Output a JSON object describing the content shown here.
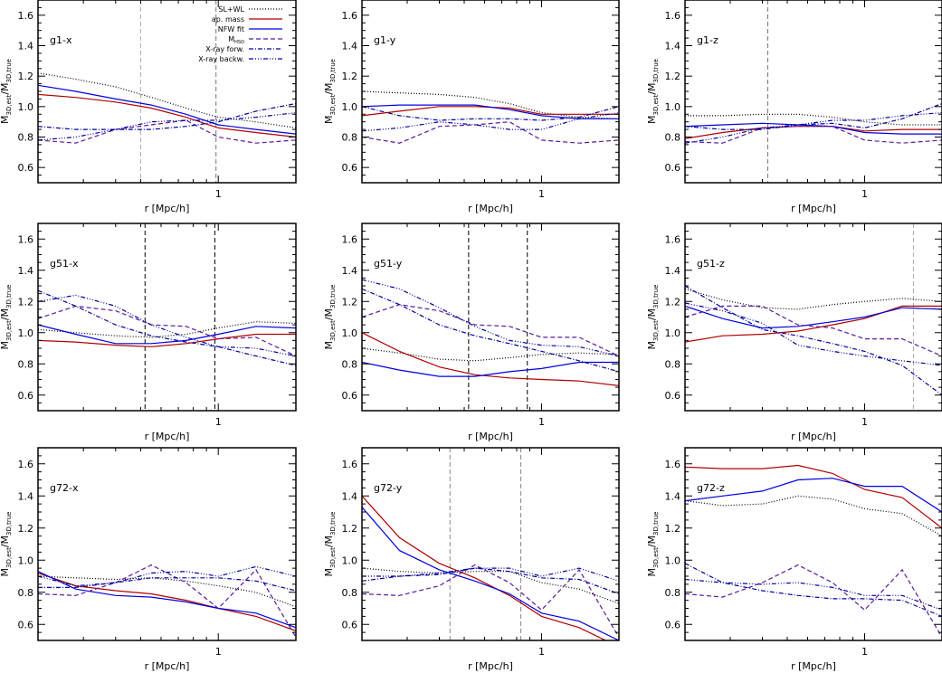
{
  "chart_data": {
    "type": "line",
    "layout": "3x3 grid",
    "xscale": "log",
    "xlim": [
      0.2,
      2.0
    ],
    "ylim": [
      0.5,
      1.7
    ],
    "xlabel": "r [Mpc/h]",
    "ylabel": "M3D,est/M3D,true",
    "ylabel_main": "M",
    "ylabel_sub1": "3D,est",
    "ylabel_mid": "/M",
    "ylabel_sub2": "3D,true",
    "xticks": [
      {
        "value": 1,
        "label": "1"
      }
    ],
    "xminor": [
      0.3,
      0.4,
      0.5,
      0.6,
      0.7,
      0.8,
      0.9,
      2.0
    ],
    "yticks": [
      {
        "value": 0.6,
        "label": "0.6"
      },
      {
        "value": 0.8,
        "label": "0.8"
      },
      {
        "value": 1.0,
        "label": "1.0"
      },
      {
        "value": 1.2,
        "label": "1.2"
      },
      {
        "value": 1.4,
        "label": "1.4"
      },
      {
        "value": 1.6,
        "label": "1.6"
      }
    ],
    "legend": {
      "position": "top-right of first panel",
      "entries": [
        {
          "key": "slwl",
          "label": "SL+WL"
        },
        {
          "key": "apmass",
          "label": "ap. mass"
        },
        {
          "key": "nfw",
          "label": "NFW fit"
        },
        {
          "key": "mhse",
          "label": "MHSE",
          "label_main": "M",
          "label_sub": "HSO"
        },
        {
          "key": "xfw",
          "label": "X-ray forw."
        },
        {
          "key": "xbw",
          "label": "X-ray backw."
        }
      ]
    },
    "series_styles": {
      "slwl": {
        "color": "#000000",
        "dash": "1,2"
      },
      "apmass": {
        "color": "#b00000",
        "dash": ""
      },
      "nfw": {
        "color": "#0000e0",
        "dash": ""
      },
      "mhse": {
        "color": "#5a1aa0",
        "dash": "5,3"
      },
      "xfw": {
        "color": "#00009a",
        "dash": "5,2,1,2"
      },
      "xbw": {
        "color": "#00009a",
        "dash": "5,2,1,2,1,2,1,2"
      }
    },
    "x": [
      0.2,
      0.28,
      0.4,
      0.55,
      0.75,
      1.0,
      1.4,
      2.0
    ],
    "panels": [
      {
        "label": "g1-x",
        "vlines": [
          {
            "x": 0.5,
            "color": "#aaaaaa"
          },
          {
            "x": 0.98,
            "color": "#777777"
          }
        ],
        "series": {
          "slwl": [
            1.22,
            1.18,
            1.13,
            1.06,
            0.99,
            0.93,
            0.9,
            0.86
          ],
          "apmass": [
            1.08,
            1.06,
            1.03,
            0.99,
            0.93,
            0.86,
            0.83,
            0.8
          ],
          "nfw": [
            1.14,
            1.1,
            1.05,
            1.01,
            0.95,
            0.88,
            0.85,
            0.82
          ],
          "mhse": [
            0.78,
            0.76,
            0.85,
            0.88,
            0.91,
            0.8,
            0.76,
            0.78
          ],
          "xfw": [
            0.87,
            0.85,
            0.85,
            0.85,
            0.87,
            0.9,
            0.97,
            1.02
          ],
          "xbw": [
            0.78,
            0.8,
            0.85,
            0.9,
            0.91,
            0.91,
            0.93,
            0.96
          ]
        }
      },
      {
        "label": "g1-y",
        "vlines": [],
        "series": {
          "slwl": [
            1.1,
            1.09,
            1.08,
            1.06,
            1.02,
            0.96,
            0.93,
            0.92
          ],
          "apmass": [
            0.94,
            0.97,
            1.0,
            1.0,
            0.99,
            0.95,
            0.95,
            0.95
          ],
          "nfw": [
            1.0,
            1.01,
            1.01,
            1.01,
            0.98,
            0.94,
            0.92,
            0.92
          ],
          "mhse": [
            0.8,
            0.76,
            0.87,
            0.88,
            0.9,
            0.78,
            0.76,
            0.78
          ],
          "xfw": [
            1.0,
            0.94,
            0.91,
            0.92,
            0.92,
            0.91,
            0.93,
            1.0
          ],
          "xbw": [
            0.84,
            0.86,
            0.9,
            0.88,
            0.85,
            0.85,
            0.92,
            0.96
          ]
        }
      },
      {
        "label": "g1-z",
        "vlines": [
          {
            "x": 0.42,
            "color": "#777777"
          }
        ],
        "series": {
          "slwl": [
            0.94,
            0.94,
            0.95,
            0.95,
            0.93,
            0.9,
            0.88,
            0.88
          ],
          "apmass": [
            0.79,
            0.83,
            0.86,
            0.87,
            0.87,
            0.84,
            0.85,
            0.85
          ],
          "nfw": [
            0.87,
            0.88,
            0.89,
            0.88,
            0.87,
            0.83,
            0.82,
            0.82
          ],
          "mhse": [
            0.77,
            0.76,
            0.86,
            0.87,
            0.87,
            0.78,
            0.76,
            0.78
          ],
          "xfw": [
            0.87,
            0.85,
            0.85,
            0.88,
            0.89,
            0.86,
            0.92,
            1.02
          ],
          "xbw": [
            0.76,
            0.8,
            0.86,
            0.88,
            0.91,
            0.91,
            0.94,
            0.96
          ]
        }
      },
      {
        "label": "g51-x",
        "vlines": [
          {
            "x": 0.52,
            "color": "#000000"
          },
          {
            "x": 0.97,
            "color": "#000000"
          }
        ],
        "series": {
          "slwl": [
            1.02,
            1.0,
            0.98,
            0.97,
            0.99,
            1.03,
            1.07,
            1.06
          ],
          "apmass": [
            0.95,
            0.94,
            0.92,
            0.91,
            0.93,
            0.96,
            0.99,
            0.99
          ],
          "nfw": [
            1.05,
            0.99,
            0.93,
            0.93,
            0.95,
            0.99,
            1.04,
            1.03
          ],
          "mhse": [
            1.09,
            1.17,
            1.14,
            1.05,
            1.04,
            0.96,
            0.97,
            0.85
          ],
          "xfw": [
            1.27,
            1.17,
            1.05,
            0.98,
            0.94,
            0.91,
            0.85,
            0.79
          ],
          "xbw": [
            1.2,
            1.24,
            1.17,
            1.05,
            0.97,
            0.91,
            0.9,
            0.85
          ]
        }
      },
      {
        "label": "g51-y",
        "vlines": [
          {
            "x": 0.52,
            "color": "#000000"
          },
          {
            "x": 0.88,
            "color": "#000000"
          }
        ],
        "series": {
          "slwl": [
            0.9,
            0.87,
            0.83,
            0.82,
            0.84,
            0.86,
            0.87,
            0.86
          ],
          "apmass": [
            1.0,
            0.88,
            0.78,
            0.73,
            0.71,
            0.7,
            0.69,
            0.66
          ],
          "nfw": [
            0.81,
            0.76,
            0.72,
            0.72,
            0.75,
            0.77,
            0.81,
            0.81
          ],
          "mhse": [
            1.1,
            1.18,
            1.14,
            1.05,
            1.04,
            0.97,
            0.97,
            0.85
          ],
          "xfw": [
            1.28,
            1.18,
            1.05,
            0.98,
            0.93,
            0.88,
            0.82,
            0.75
          ],
          "xbw": [
            1.34,
            1.28,
            1.16,
            1.04,
            0.95,
            0.92,
            0.91,
            0.85
          ]
        }
      },
      {
        "label": "g51-z",
        "vlines": [
          {
            "x": 1.55,
            "color": "#aaaaaa"
          }
        ],
        "series": {
          "slwl": [
            1.28,
            1.21,
            1.16,
            1.15,
            1.18,
            1.2,
            1.22,
            1.2
          ],
          "apmass": [
            0.94,
            0.98,
            0.99,
            1.01,
            1.05,
            1.09,
            1.17,
            1.17
          ],
          "nfw": [
            1.17,
            1.09,
            1.03,
            1.04,
            1.07,
            1.1,
            1.16,
            1.15
          ],
          "mhse": [
            1.1,
            1.17,
            1.17,
            1.05,
            1.03,
            0.96,
            0.96,
            0.85
          ],
          "xfw": [
            1.3,
            1.16,
            1.02,
            0.98,
            0.93,
            0.88,
            0.79,
            0.6
          ],
          "xbw": [
            1.19,
            1.14,
            1.06,
            0.92,
            0.88,
            0.85,
            0.82,
            0.79
          ]
        }
      },
      {
        "label": "g72-x",
        "vlines": [],
        "series": {
          "slwl": [
            0.9,
            0.89,
            0.88,
            0.89,
            0.87,
            0.84,
            0.8,
            0.71
          ],
          "apmass": [
            0.92,
            0.84,
            0.81,
            0.79,
            0.75,
            0.7,
            0.65,
            0.56
          ],
          "nfw": [
            0.93,
            0.82,
            0.78,
            0.77,
            0.74,
            0.7,
            0.67,
            0.58
          ],
          "mhse": [
            0.79,
            0.78,
            0.86,
            0.97,
            0.86,
            0.7,
            0.94,
            0.52
          ],
          "xfw": [
            0.83,
            0.83,
            0.86,
            0.89,
            0.89,
            0.89,
            0.87,
            0.81
          ],
          "xbw": [
            0.9,
            0.84,
            0.86,
            0.92,
            0.93,
            0.9,
            0.96,
            0.9
          ]
        }
      },
      {
        "label": "g72-y",
        "vlines": [
          {
            "x": 0.44,
            "color": "#888888"
          },
          {
            "x": 0.83,
            "color": "#888888"
          }
        ],
        "series": {
          "slwl": [
            0.95,
            0.93,
            0.92,
            0.93,
            0.93,
            0.86,
            0.82,
            0.73
          ],
          "apmass": [
            1.4,
            1.14,
            0.98,
            0.89,
            0.78,
            0.65,
            0.58,
            0.46
          ],
          "nfw": [
            1.33,
            1.06,
            0.94,
            0.87,
            0.79,
            0.67,
            0.62,
            0.5
          ],
          "mhse": [
            0.79,
            0.78,
            0.84,
            0.97,
            0.86,
            0.69,
            0.94,
            0.52
          ],
          "xfw": [
            0.87,
            0.9,
            0.91,
            0.95,
            0.93,
            0.89,
            0.88,
            0.79
          ],
          "xbw": [
            0.9,
            0.9,
            0.92,
            0.95,
            0.95,
            0.9,
            0.95,
            0.87
          ]
        }
      },
      {
        "label": "g72-z",
        "vlines": [],
        "series": {
          "slwl": [
            1.37,
            1.34,
            1.35,
            1.4,
            1.38,
            1.32,
            1.29,
            1.15
          ],
          "apmass": [
            1.58,
            1.57,
            1.57,
            1.59,
            1.54,
            1.44,
            1.39,
            1.2
          ],
          "nfw": [
            1.37,
            1.4,
            1.43,
            1.5,
            1.51,
            1.46,
            1.46,
            1.3
          ],
          "mhse": [
            0.79,
            0.77,
            0.86,
            0.97,
            0.86,
            0.69,
            0.94,
            0.52
          ],
          "xfw": [
            0.98,
            0.86,
            0.81,
            0.78,
            0.76,
            0.76,
            0.75,
            0.65
          ],
          "xbw": [
            0.88,
            0.86,
            0.85,
            0.86,
            0.83,
            0.78,
            0.78,
            0.69
          ]
        }
      }
    ]
  }
}
